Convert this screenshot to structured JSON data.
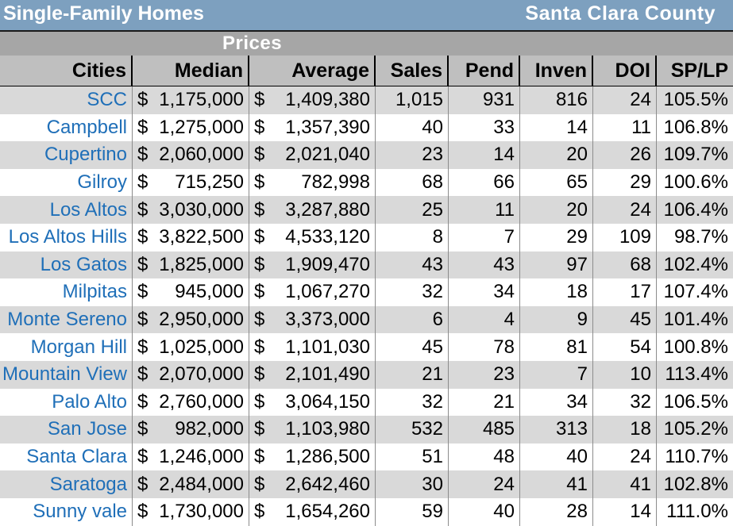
{
  "title": "Single-Family Homes",
  "county": "Santa Clara County",
  "section": "Prices",
  "columns": [
    "Cities",
    "Median",
    "Average",
    "Sales",
    "Pend",
    "Inven",
    "DOI",
    "SP/LP"
  ],
  "currency_symbol": "$",
  "colors": {
    "title_bar": "#7da0bf",
    "header": "#bfbfbf",
    "shade": "#d9d9d9",
    "city_text": "#1f6fb8"
  },
  "chart_data": {
    "type": "table",
    "title": "Single-Family Homes",
    "subtitle": "Santa Clara County",
    "columns": [
      "Cities",
      "Median",
      "Average",
      "Sales",
      "Pend",
      "Inven",
      "DOI",
      "SP/LP"
    ],
    "rows": [
      {
        "city": "SCC",
        "median": "1,175,000",
        "average": "1,409,380",
        "sales": "1,015",
        "pend": "931",
        "inven": "816",
        "doi": "24",
        "splp": "105.5%"
      },
      {
        "city": "Campbell",
        "median": "1,275,000",
        "average": "1,357,390",
        "sales": "40",
        "pend": "33",
        "inven": "14",
        "doi": "11",
        "splp": "106.8%"
      },
      {
        "city": "Cupertino",
        "median": "2,060,000",
        "average": "2,021,040",
        "sales": "23",
        "pend": "14",
        "inven": "20",
        "doi": "26",
        "splp": "109.7%"
      },
      {
        "city": "Gilroy",
        "median": "715,250",
        "average": "782,998",
        "sales": "68",
        "pend": "66",
        "inven": "65",
        "doi": "29",
        "splp": "100.6%"
      },
      {
        "city": "Los Altos",
        "median": "3,030,000",
        "average": "3,287,880",
        "sales": "25",
        "pend": "11",
        "inven": "20",
        "doi": "24",
        "splp": "106.4%"
      },
      {
        "city": "Los Altos Hills",
        "median": "3,822,500",
        "average": "4,533,120",
        "sales": "8",
        "pend": "7",
        "inven": "29",
        "doi": "109",
        "splp": "98.7%"
      },
      {
        "city": "Los Gatos",
        "median": "1,825,000",
        "average": "1,909,470",
        "sales": "43",
        "pend": "43",
        "inven": "97",
        "doi": "68",
        "splp": "102.4%"
      },
      {
        "city": "Milpitas",
        "median": "945,000",
        "average": "1,067,270",
        "sales": "32",
        "pend": "34",
        "inven": "18",
        "doi": "17",
        "splp": "107.4%"
      },
      {
        "city": "Monte Sereno",
        "median": "2,950,000",
        "average": "3,373,000",
        "sales": "6",
        "pend": "4",
        "inven": "9",
        "doi": "45",
        "splp": "101.4%"
      },
      {
        "city": "Morgan Hill",
        "median": "1,025,000",
        "average": "1,101,030",
        "sales": "45",
        "pend": "78",
        "inven": "81",
        "doi": "54",
        "splp": "100.8%"
      },
      {
        "city": "Mountain View",
        "median": "2,070,000",
        "average": "2,101,490",
        "sales": "21",
        "pend": "23",
        "inven": "7",
        "doi": "10",
        "splp": "113.4%"
      },
      {
        "city": "Palo Alto",
        "median": "2,760,000",
        "average": "3,064,150",
        "sales": "32",
        "pend": "21",
        "inven": "34",
        "doi": "32",
        "splp": "106.5%"
      },
      {
        "city": "San Jose",
        "median": "982,000",
        "average": "1,103,980",
        "sales": "532",
        "pend": "485",
        "inven": "313",
        "doi": "18",
        "splp": "105.2%"
      },
      {
        "city": "Santa Clara",
        "median": "1,246,000",
        "average": "1,286,500",
        "sales": "51",
        "pend": "48",
        "inven": "40",
        "doi": "24",
        "splp": "110.7%"
      },
      {
        "city": "Saratoga",
        "median": "2,484,000",
        "average": "2,642,460",
        "sales": "30",
        "pend": "24",
        "inven": "41",
        "doi": "41",
        "splp": "102.8%"
      },
      {
        "city": "Sunny vale",
        "median": "1,730,000",
        "average": "1,654,260",
        "sales": "59",
        "pend": "40",
        "inven": "28",
        "doi": "14",
        "splp": "111.0%"
      }
    ]
  }
}
